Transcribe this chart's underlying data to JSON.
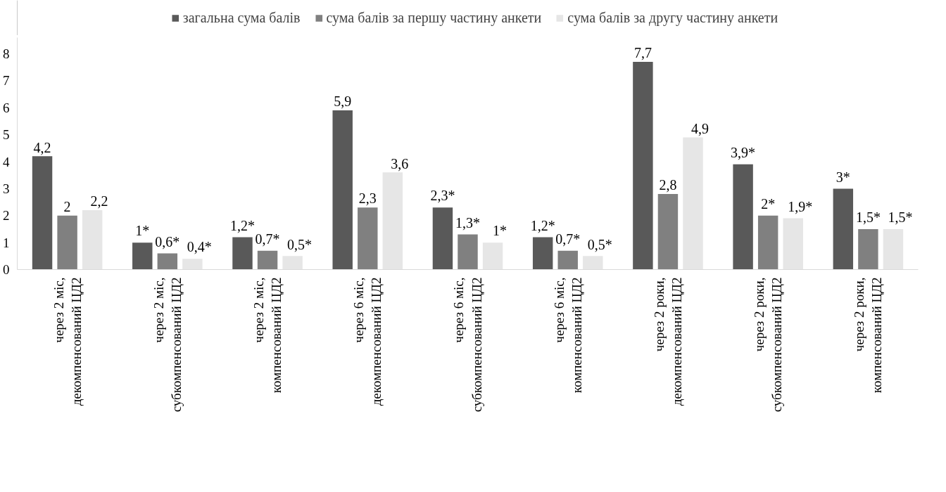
{
  "chart_data": {
    "type": "bar",
    "categories": [
      "через 2 міс, декомпенсований ЦД2",
      "через 2 міс, субкомпенсований ЦД2",
      "через 2 міс, компенсований ЦД2",
      "через 6 міс, декомпенсований ЦД2",
      "через 6 міс, субкомпенсований ЦД2",
      "через 6 міс, компенсований ЦД2",
      "через 2 роки, декомпенсований ЦД2",
      "через 2 роки, субкомпенсований ЦД2",
      "через 2 роки, компенсований ЦД2"
    ],
    "series": [
      {
        "name": "загальна сума балів",
        "color": "#595959",
        "values": [
          4.2,
          1,
          1.2,
          5.9,
          2.3,
          1.2,
          7.7,
          3.9,
          3
        ],
        "value_labels": [
          "4,2",
          "1*",
          "1,2*",
          "5,9",
          "2,3*",
          "1,2*",
          "7,7",
          "3,9*",
          "3*"
        ]
      },
      {
        "name": "сума балів за першу частину анкети",
        "color": "#808080",
        "values": [
          2,
          0.6,
          0.7,
          2.3,
          1.3,
          0.7,
          2.8,
          2,
          1.5
        ],
        "value_labels": [
          "2",
          "0,6*",
          "0,7*",
          "2,3",
          "1,3*",
          "0,7*",
          "2,8",
          "2*",
          "1,5*"
        ]
      },
      {
        "name": "сума балів за другу частину анкети",
        "color": "#e6e6e6",
        "values": [
          2.2,
          0.4,
          0.5,
          3.6,
          1,
          0.5,
          4.9,
          1.9,
          1.5
        ],
        "value_labels": [
          "2,2",
          "0,4*",
          "0,5*",
          "3,6",
          "1*",
          "0,5*",
          "4,9",
          "1,9*",
          "1,5*"
        ]
      }
    ],
    "ylim": [
      0,
      8.6
    ],
    "yticks": [
      0,
      1,
      2,
      3,
      4,
      5,
      6,
      7,
      8
    ],
    "grid": false,
    "legend": "top"
  }
}
